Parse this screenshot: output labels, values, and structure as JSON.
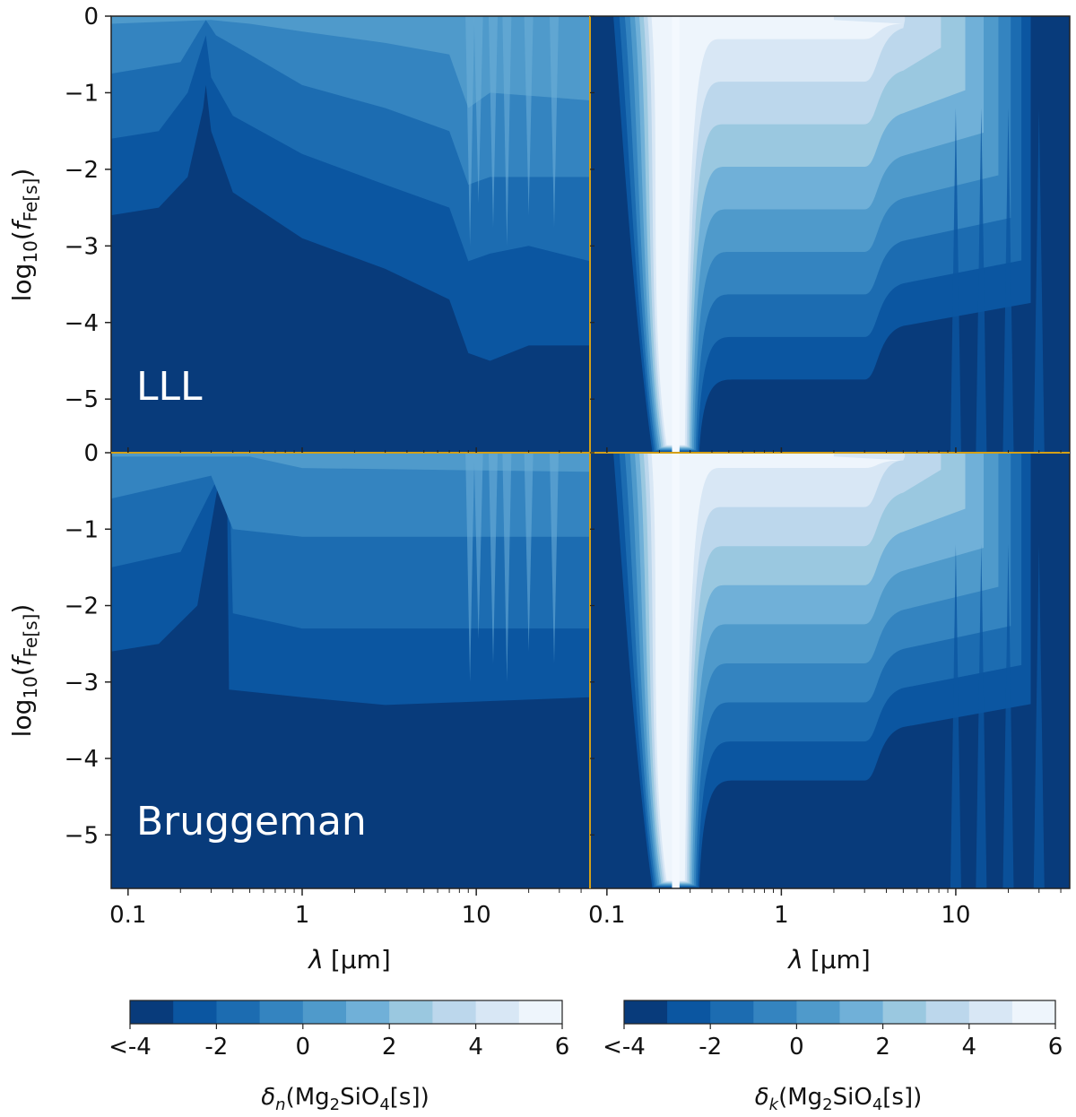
{
  "figure": {
    "panels": [
      {
        "id": "top-left",
        "row_label": "LLL",
        "quantity": "delta_n"
      },
      {
        "id": "top-right",
        "row_label": "LLL",
        "quantity": "delta_k"
      },
      {
        "id": "bottom-left",
        "row_label": "Bruggeman",
        "quantity": "delta_n"
      },
      {
        "id": "bottom-right",
        "row_label": "Bruggeman",
        "quantity": "delta_k"
      }
    ],
    "row_labels": [
      "LLL",
      "Bruggeman"
    ],
    "axes": {
      "ylabel_main": "log",
      "ylabel_sub": "10",
      "ylabel_f": "f",
      "ylabel_fsub": "Fe[s]",
      "xlabel_lambda": "λ",
      "xlabel_unit": "[μm]",
      "yticks": [
        "0",
        "−1",
        "−2",
        "−3",
        "−4",
        "−5"
      ],
      "xticks": [
        "0.1",
        "1",
        "10"
      ]
    },
    "colorbars": [
      {
        "label_delta": "δ",
        "label_sub": "n",
        "label_rest": "(Mg",
        "label_sub2": "2",
        "label_mid": "SiO",
        "label_sub4": "4",
        "label_end": "[s])",
        "ticks": [
          "<-4",
          "-2",
          "0",
          "2",
          "4",
          "6"
        ]
      },
      {
        "label_delta": "δ",
        "label_sub": "k",
        "label_rest": "(Mg",
        "label_sub2": "2",
        "label_mid": "SiO",
        "label_sub4": "4",
        "label_end": "[s])",
        "ticks": [
          "<-4",
          "-2",
          "0",
          "2",
          "4",
          "6"
        ]
      }
    ],
    "colormap": [
      "#083b7b",
      "#0b56a1",
      "#1c6cb1",
      "#3484c0",
      "#4f9acb",
      "#70b0d8",
      "#9ac8e0",
      "#bcd7ec",
      "#d8e7f5",
      "#eef5fc"
    ],
    "separator_color": "#d4a017"
  },
  "chart_data": {
    "type": "heatmap",
    "x_scale": "log",
    "xlim_um": [
      0.08,
      45
    ],
    "ylim": [
      -5.7,
      0
    ],
    "levels": [
      -4,
      -3,
      -2,
      -1,
      0,
      1,
      2,
      3,
      4,
      5,
      6
    ],
    "panels": [
      {
        "name": "LLL δn",
        "boundaries": [
          {
            "level": -3,
            "points": [
              [
                0.08,
                -2.6
              ],
              [
                0.15,
                -2.5
              ],
              [
                0.22,
                -2.1
              ],
              [
                0.27,
                -1.2
              ],
              [
                0.28,
                -0.9
              ],
              [
                0.3,
                -1.5
              ],
              [
                0.4,
                -2.3
              ],
              [
                1,
                -2.9
              ],
              [
                3,
                -3.3
              ],
              [
                7,
                -3.7
              ],
              [
                9,
                -4.4
              ],
              [
                12,
                -4.5
              ],
              [
                20,
                -4.3
              ],
              [
                45,
                -4.3
              ]
            ]
          },
          {
            "level": -2,
            "points": [
              [
                0.08,
                -1.6
              ],
              [
                0.15,
                -1.5
              ],
              [
                0.22,
                -1.0
              ],
              [
                0.28,
                -0.25
              ],
              [
                0.3,
                -0.8
              ],
              [
                0.4,
                -1.3
              ],
              [
                1,
                -1.8
              ],
              [
                3,
                -2.2
              ],
              [
                7,
                -2.5
              ],
              [
                9,
                -3.2
              ],
              [
                12,
                -3.1
              ],
              [
                20,
                -3.0
              ],
              [
                45,
                -3.2
              ]
            ]
          },
          {
            "level": -1,
            "points": [
              [
                0.08,
                -0.75
              ],
              [
                0.2,
                -0.6
              ],
              [
                0.28,
                -0.05
              ],
              [
                0.32,
                -0.25
              ],
              [
                0.5,
                -0.5
              ],
              [
                1,
                -0.9
              ],
              [
                3,
                -1.2
              ],
              [
                7,
                -1.5
              ],
              [
                9,
                -2.2
              ],
              [
                12,
                -2.1
              ],
              [
                45,
                -2.1
              ]
            ]
          },
          {
            "level": 0,
            "points": [
              [
                0.08,
                -0.1
              ],
              [
                0.3,
                -0.05
              ],
              [
                0.5,
                -0.1
              ],
              [
                1,
                -0.2
              ],
              [
                3,
                -0.35
              ],
              [
                7,
                -0.5
              ],
              [
                9,
                -1.2
              ],
              [
                12,
                -1.0
              ],
              [
                45,
                -1.1
              ]
            ]
          }
        ]
      },
      {
        "name": "LLL δk",
        "levels_span": [
          -4,
          6
        ],
        "dip_um": [
          0.2,
          0.28
        ],
        "plateau_um": [
          0.3,
          3.5
        ]
      },
      {
        "name": "Bruggeman δn",
        "boundaries": [
          {
            "level": -3,
            "points": [
              [
                0.08,
                -2.6
              ],
              [
                0.15,
                -2.5
              ],
              [
                0.25,
                -2.0
              ],
              [
                0.33,
                -0.4
              ],
              [
                0.37,
                -0.3
              ],
              [
                0.38,
                -3.1
              ],
              [
                1,
                -3.2
              ],
              [
                3,
                -3.3
              ],
              [
                45,
                -3.2
              ]
            ]
          },
          {
            "level": -2,
            "points": [
              [
                0.08,
                -1.5
              ],
              [
                0.2,
                -1.3
              ],
              [
                0.3,
                -0.5
              ],
              [
                0.38,
                -0.05
              ],
              [
                0.4,
                -2.1
              ],
              [
                1,
                -2.3
              ],
              [
                45,
                -2.3
              ]
            ]
          },
          {
            "level": -1,
            "points": [
              [
                0.08,
                -0.6
              ],
              [
                0.3,
                -0.3
              ],
              [
                0.4,
                -1.0
              ],
              [
                1,
                -1.1
              ],
              [
                45,
                -1.1
              ]
            ]
          },
          {
            "level": 0,
            "points": [
              [
                0.08,
                -0.05
              ],
              [
                0.5,
                -0.05
              ],
              [
                1,
                -0.2
              ],
              [
                45,
                -0.25
              ]
            ]
          }
        ]
      },
      {
        "name": "Bruggeman δk",
        "levels_span": [
          -4,
          6
        ],
        "dip_um": [
          0.21,
          0.28
        ],
        "plateau_um": [
          0.3,
          3.5
        ]
      }
    ]
  }
}
